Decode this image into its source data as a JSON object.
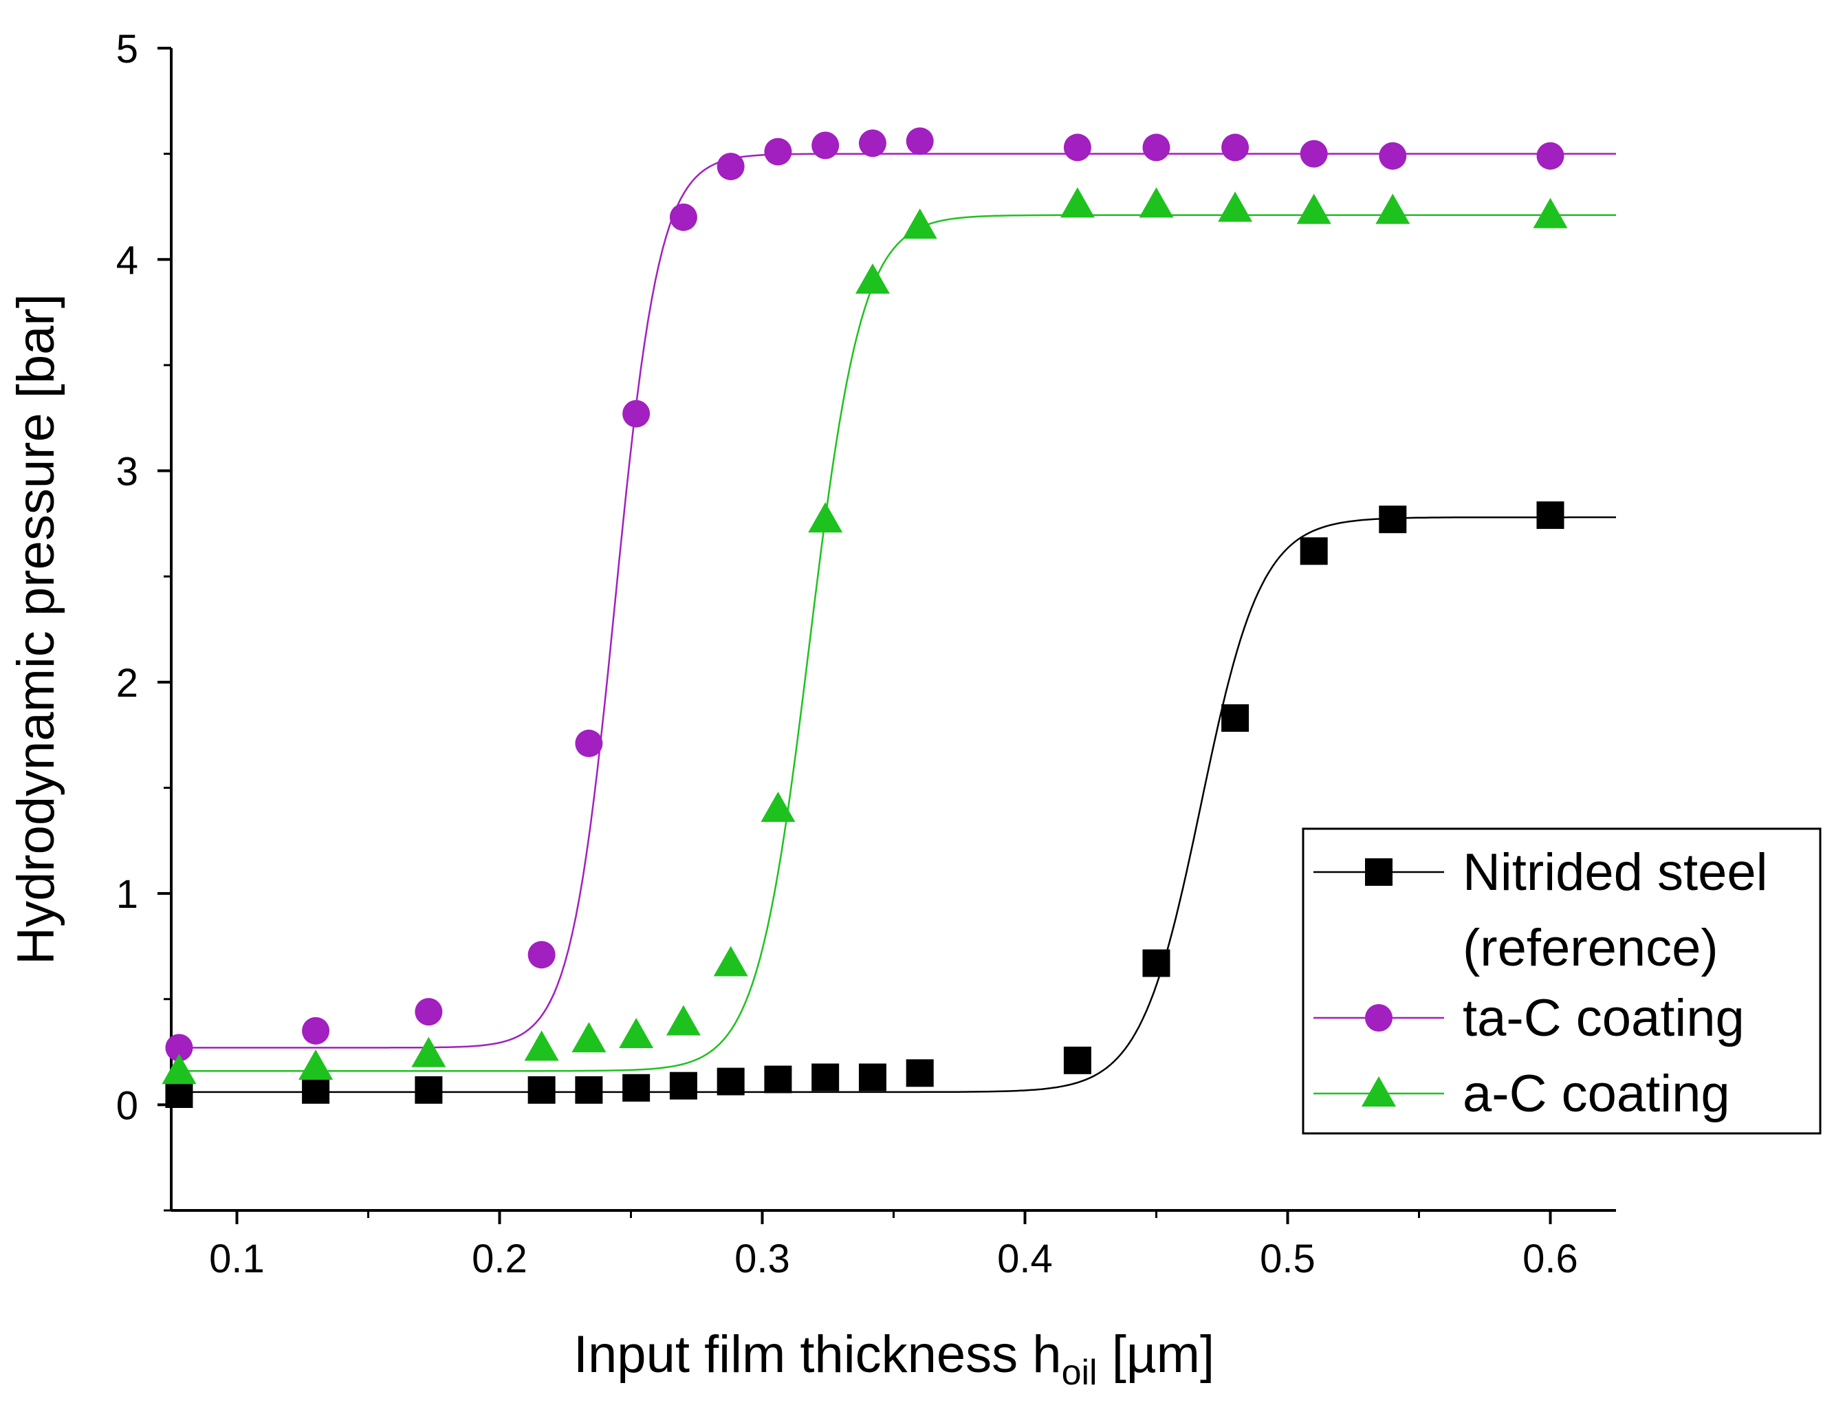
{
  "chart_data": {
    "type": "line",
    "title": "",
    "xlabel": "Input film thickness h",
    "xlabel_subscript": "oil",
    "xlabel_unit": " [µm]",
    "ylabel": "Hydrodynamic pressure [bar]",
    "xlim": [
      0.075,
      0.625
    ],
    "ylim": [
      -0.5,
      5
    ],
    "x_ticks": [
      0.1,
      0.2,
      0.3,
      0.4,
      0.5,
      0.6
    ],
    "x_tick_labels": [
      "0.1",
      "0.2",
      "0.3",
      "0.4",
      "0.5",
      "0.6"
    ],
    "y_ticks": [
      0,
      1,
      2,
      3,
      4,
      5
    ],
    "y_tick_labels": [
      "0",
      "1",
      "2",
      "3",
      "4",
      "5"
    ],
    "grid": false,
    "legend_position": "bottom-right",
    "series": [
      {
        "name": "Nitrided steel (reference)",
        "legend_lines": [
          "Nitrided steel",
          "(reference)"
        ],
        "marker": "square",
        "marker_color": "#000000",
        "line_color": "#000000",
        "fit": {
          "base": 0.06,
          "slope": 0.18,
          "amplitude": 2.72,
          "center": 0.467,
          "width": 0.0115
        },
        "x": [
          0.078,
          0.13,
          0.173,
          0.216,
          0.234,
          0.252,
          0.27,
          0.288,
          0.306,
          0.324,
          0.342,
          0.36,
          0.42,
          0.45,
          0.48,
          0.51,
          0.54,
          0.6
        ],
        "y": [
          0.05,
          0.07,
          0.07,
          0.07,
          0.07,
          0.08,
          0.09,
          0.11,
          0.12,
          0.13,
          0.13,
          0.15,
          0.21,
          0.67,
          1.83,
          2.62,
          2.77,
          2.79
        ]
      },
      {
        "name": "ta-C coating",
        "legend_lines": [
          "ta-C coating"
        ],
        "marker": "circle",
        "marker_color": "#a21fc0",
        "line_color": "#a21fc0",
        "fit": {
          "base": 0.27,
          "slope": 0.9,
          "amplitude": 4.23,
          "center": 0.244,
          "width": 0.0085
        },
        "x": [
          0.078,
          0.13,
          0.173,
          0.216,
          0.234,
          0.252,
          0.27,
          0.288,
          0.306,
          0.324,
          0.342,
          0.36,
          0.42,
          0.45,
          0.48,
          0.51,
          0.54,
          0.6
        ],
        "y": [
          0.27,
          0.35,
          0.44,
          0.71,
          1.71,
          3.27,
          4.2,
          4.44,
          4.51,
          4.54,
          4.55,
          4.56,
          4.53,
          4.53,
          4.53,
          4.5,
          4.49,
          4.49
        ]
      },
      {
        "name": "a-C coating",
        "legend_lines": [
          "a-C coating"
        ],
        "marker": "triangle",
        "marker_color": "#1ec21e",
        "line_color": "#1ec21e",
        "fit": {
          "base": 0.16,
          "slope": 0.7,
          "amplitude": 4.05,
          "center": 0.318,
          "width": 0.01
        },
        "x": [
          0.078,
          0.13,
          0.173,
          0.216,
          0.234,
          0.252,
          0.27,
          0.288,
          0.306,
          0.324,
          0.342,
          0.36,
          0.42,
          0.45,
          0.48,
          0.51,
          0.54,
          0.6
        ],
        "y": [
          0.16,
          0.18,
          0.24,
          0.27,
          0.31,
          0.33,
          0.39,
          0.67,
          1.4,
          2.77,
          3.9,
          4.16,
          4.26,
          4.26,
          4.24,
          4.23,
          4.23,
          4.21
        ]
      }
    ]
  }
}
